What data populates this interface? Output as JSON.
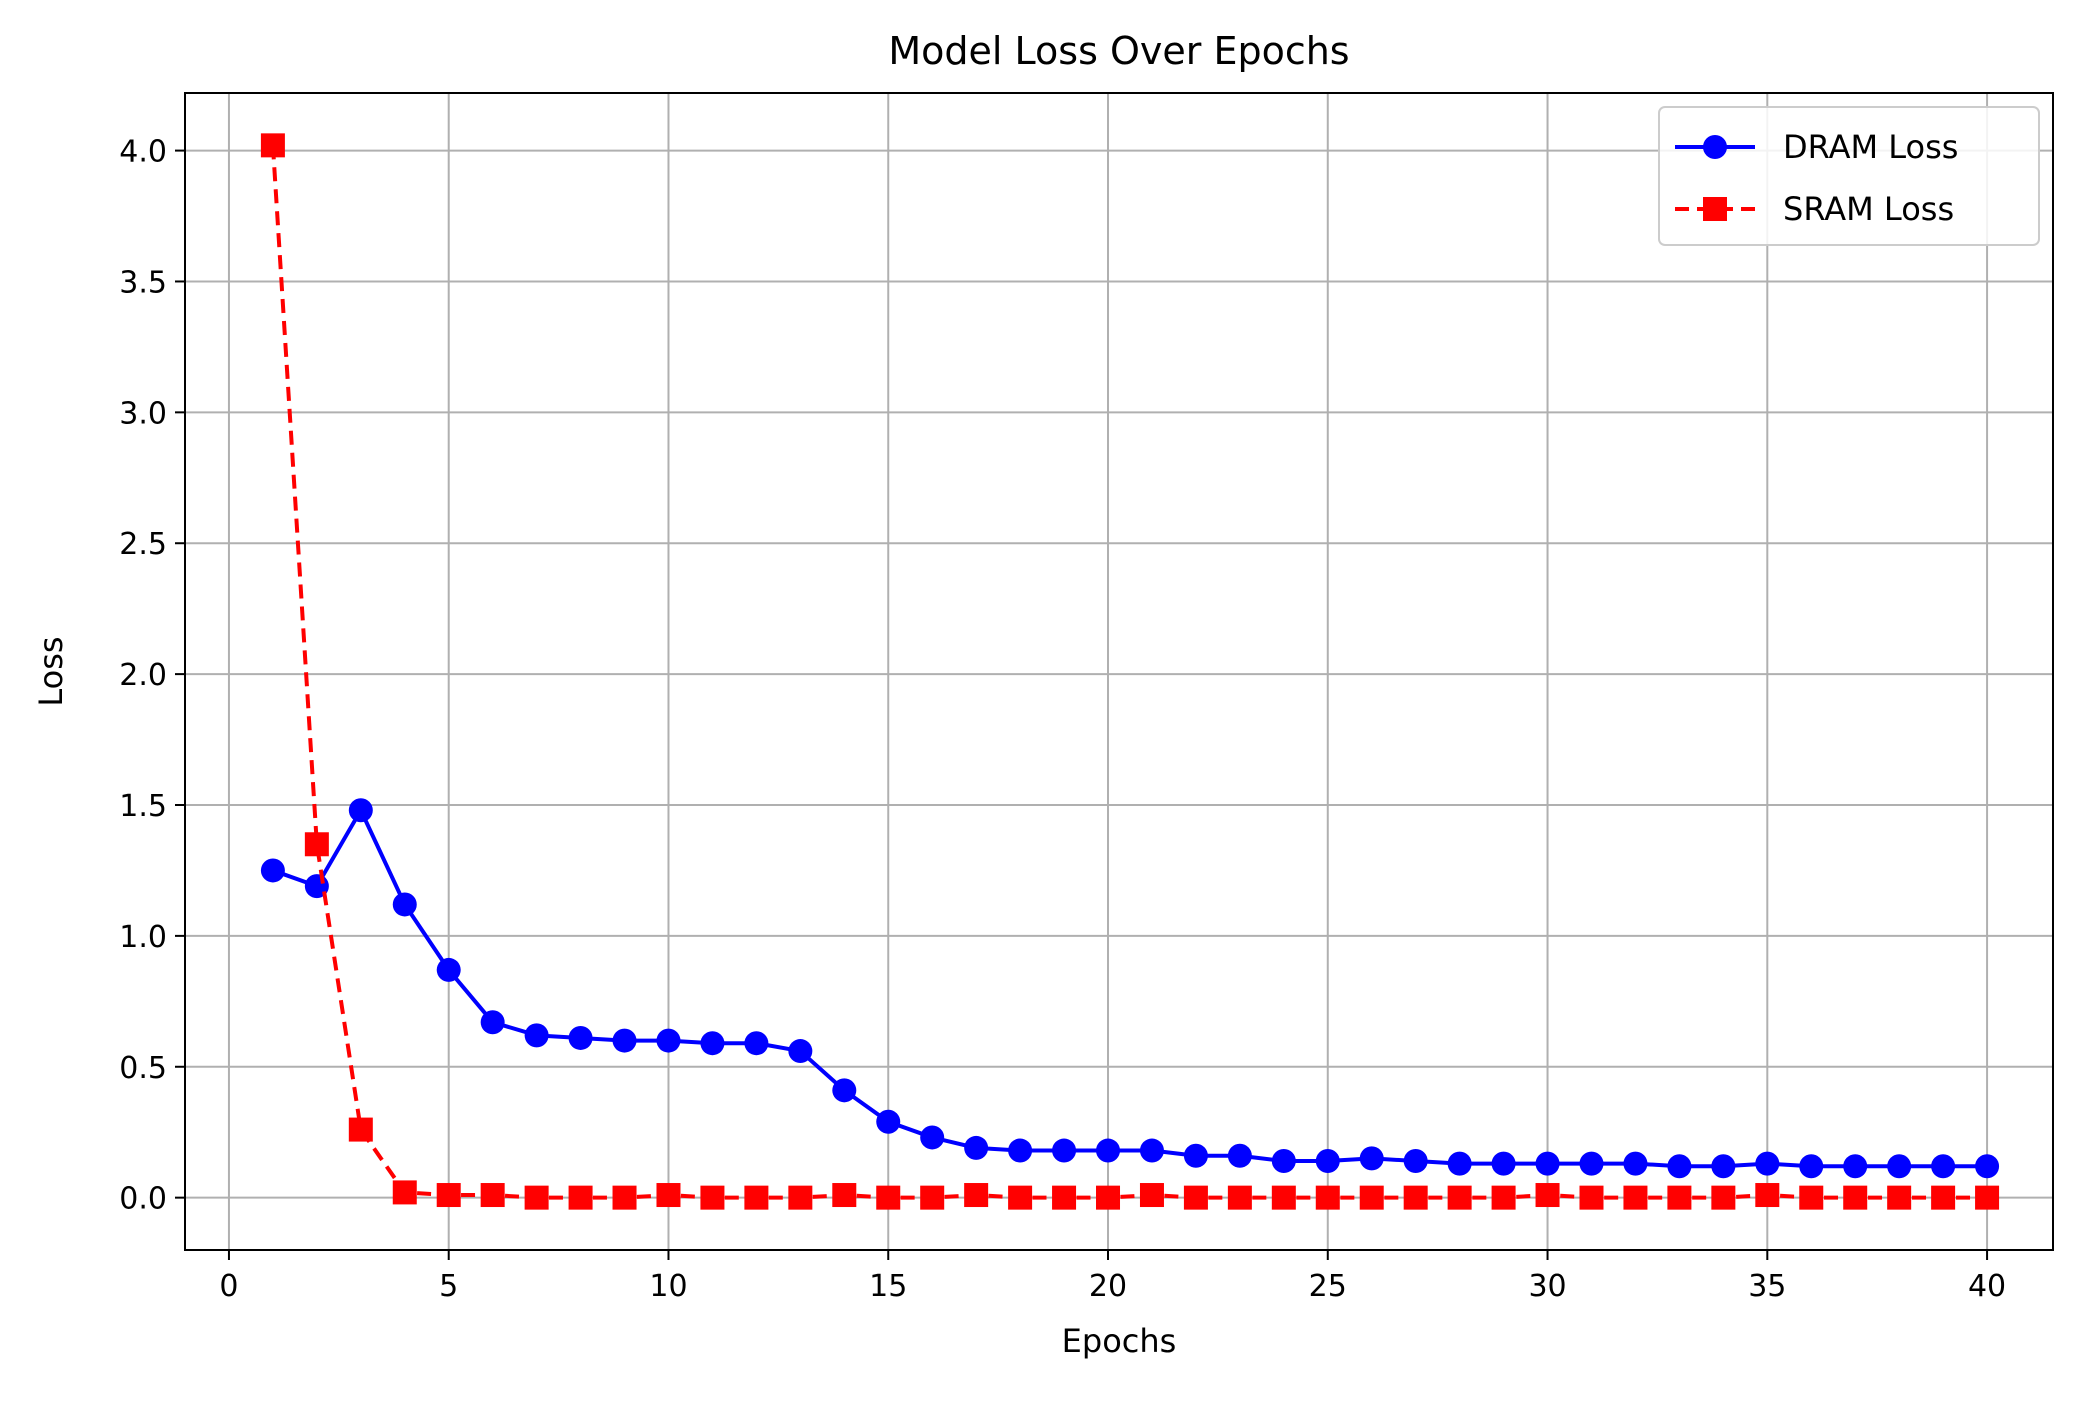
{
  "chart_data": {
    "type": "line",
    "title": "Model Loss Over Epochs",
    "xlabel": "Epochs",
    "ylabel": "Loss",
    "xlim": [
      -1,
      41.5
    ],
    "ylim": [
      -0.2,
      4.22
    ],
    "xticks": [
      0,
      5,
      10,
      15,
      20,
      25,
      30,
      35,
      40
    ],
    "yticks": [
      0.0,
      0.5,
      1.0,
      1.5,
      2.0,
      2.5,
      3.0,
      3.5,
      4.0
    ],
    "xtick_labels": [
      "0",
      "5",
      "10",
      "15",
      "20",
      "25",
      "30",
      "35",
      "40"
    ],
    "ytick_labels": [
      "0.0",
      "0.5",
      "1.0",
      "1.5",
      "2.0",
      "2.5",
      "3.0",
      "3.5",
      "4.0"
    ],
    "grid": true,
    "legend_position": "top-right",
    "x": [
      1,
      2,
      3,
      4,
      5,
      6,
      7,
      8,
      9,
      10,
      11,
      12,
      13,
      14,
      15,
      16,
      17,
      18,
      19,
      20,
      21,
      22,
      23,
      24,
      25,
      26,
      27,
      28,
      29,
      30,
      31,
      32,
      33,
      34,
      35,
      36,
      37,
      38,
      39,
      40
    ],
    "series": [
      {
        "name": "DRAM Loss",
        "color": "#0000ff",
        "line_style": "solid",
        "marker": "circle",
        "values": [
          1.25,
          1.19,
          1.48,
          1.12,
          0.87,
          0.67,
          0.62,
          0.61,
          0.6,
          0.6,
          0.59,
          0.59,
          0.56,
          0.41,
          0.29,
          0.23,
          0.19,
          0.18,
          0.18,
          0.18,
          0.18,
          0.16,
          0.16,
          0.14,
          0.14,
          0.15,
          0.14,
          0.13,
          0.13,
          0.13,
          0.13,
          0.13,
          0.12,
          0.12,
          0.13,
          0.12,
          0.12,
          0.12,
          0.12,
          0.12
        ]
      },
      {
        "name": "SRAM Loss",
        "color": "#ff0000",
        "line_style": "dashed",
        "marker": "square",
        "values": [
          4.02,
          1.35,
          0.26,
          0.02,
          0.01,
          0.01,
          0.0,
          0.0,
          0.0,
          0.01,
          0.0,
          0.0,
          0.0,
          0.01,
          0.0,
          0.0,
          0.01,
          0.0,
          0.0,
          0.0,
          0.01,
          0.0,
          0.0,
          0.0,
          0.0,
          0.0,
          0.0,
          0.0,
          0.0,
          0.01,
          0.0,
          0.0,
          0.0,
          0.0,
          0.01,
          0.0,
          0.0,
          0.0,
          0.0,
          0.0
        ]
      }
    ]
  }
}
